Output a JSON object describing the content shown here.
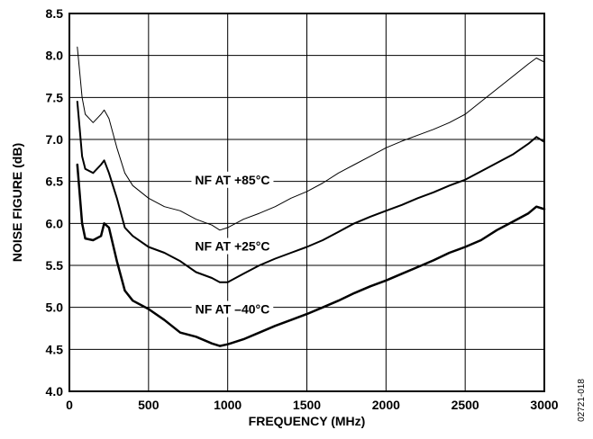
{
  "figure_id": "02721-018",
  "chart_data": {
    "type": "line",
    "title": "",
    "xlabel": "FREQUENCY (MHz)",
    "ylabel": "NOISE FIGURE (dB)",
    "xlim": [
      0,
      3000
    ],
    "ylim": [
      4.0,
      8.5
    ],
    "xticks": [
      0,
      500,
      1000,
      1500,
      2000,
      2500,
      3000
    ],
    "xtick_labels": [
      "0",
      "500",
      "1000",
      "1500",
      "2000",
      "2500",
      "3000"
    ],
    "yticks": [
      4.0,
      4.5,
      5.0,
      5.5,
      6.0,
      6.5,
      7.0,
      7.5,
      8.0,
      8.5
    ],
    "ytick_labels": [
      "4.0",
      "4.5",
      "5.0",
      "5.5",
      "6.0",
      "6.5",
      "7.0",
      "7.5",
      "8.0",
      "8.5"
    ],
    "grid": true,
    "legend": "none",
    "series": [
      {
        "name": "NF AT +85°C",
        "line_width": 1,
        "x": [
          50,
          80,
          100,
          150,
          200,
          220,
          250,
          300,
          350,
          400,
          500,
          600,
          700,
          800,
          900,
          950,
          1000,
          1100,
          1200,
          1300,
          1400,
          1500,
          1600,
          1700,
          1800,
          1900,
          2000,
          2100,
          2200,
          2300,
          2400,
          2500,
          2600,
          2700,
          2800,
          2900,
          2950,
          3000
        ],
        "y": [
          8.1,
          7.5,
          7.3,
          7.2,
          7.3,
          7.35,
          7.25,
          6.9,
          6.6,
          6.45,
          6.3,
          6.2,
          6.15,
          6.05,
          5.98,
          5.92,
          5.95,
          6.05,
          6.12,
          6.2,
          6.3,
          6.38,
          6.48,
          6.6,
          6.7,
          6.8,
          6.9,
          6.98,
          7.05,
          7.12,
          7.2,
          7.3,
          7.45,
          7.6,
          7.75,
          7.9,
          7.97,
          7.92
        ]
      },
      {
        "name": "NF AT +25°C",
        "line_width": 2,
        "x": [
          50,
          80,
          100,
          150,
          200,
          220,
          250,
          300,
          350,
          400,
          500,
          600,
          700,
          800,
          900,
          950,
          1000,
          1100,
          1200,
          1300,
          1400,
          1500,
          1600,
          1700,
          1800,
          1900,
          2000,
          2100,
          2200,
          2300,
          2400,
          2500,
          2600,
          2700,
          2800,
          2900,
          2950,
          3000
        ],
        "y": [
          7.45,
          6.8,
          6.65,
          6.6,
          6.7,
          6.75,
          6.6,
          6.3,
          5.95,
          5.85,
          5.72,
          5.65,
          5.55,
          5.42,
          5.35,
          5.3,
          5.3,
          5.4,
          5.5,
          5.58,
          5.65,
          5.72,
          5.8,
          5.9,
          6.0,
          6.08,
          6.15,
          6.22,
          6.3,
          6.37,
          6.45,
          6.52,
          6.62,
          6.72,
          6.82,
          6.95,
          7.03,
          6.97
        ]
      },
      {
        "name": "NF AT –40°C",
        "line_width": 2.5,
        "x": [
          50,
          80,
          100,
          150,
          200,
          220,
          250,
          300,
          350,
          400,
          500,
          600,
          700,
          800,
          900,
          950,
          1000,
          1100,
          1200,
          1300,
          1400,
          1500,
          1600,
          1700,
          1800,
          1900,
          2000,
          2100,
          2200,
          2300,
          2400,
          2500,
          2600,
          2700,
          2800,
          2900,
          2950,
          3000
        ],
        "y": [
          6.7,
          6.0,
          5.82,
          5.8,
          5.85,
          6.0,
          5.95,
          5.55,
          5.2,
          5.08,
          4.98,
          4.85,
          4.7,
          4.65,
          4.57,
          4.54,
          4.56,
          4.62,
          4.7,
          4.78,
          4.85,
          4.92,
          5.0,
          5.08,
          5.17,
          5.25,
          5.32,
          5.4,
          5.48,
          5.56,
          5.65,
          5.72,
          5.8,
          5.92,
          6.02,
          6.12,
          6.2,
          6.17
        ]
      }
    ],
    "annotations": [
      {
        "text": "NF AT +85°C",
        "x": 1030,
        "y": 6.52
      },
      {
        "text": "NF AT +25°C",
        "x": 1030,
        "y": 5.73
      },
      {
        "text": "NF AT –40°C",
        "x": 1030,
        "y": 4.98
      }
    ]
  }
}
